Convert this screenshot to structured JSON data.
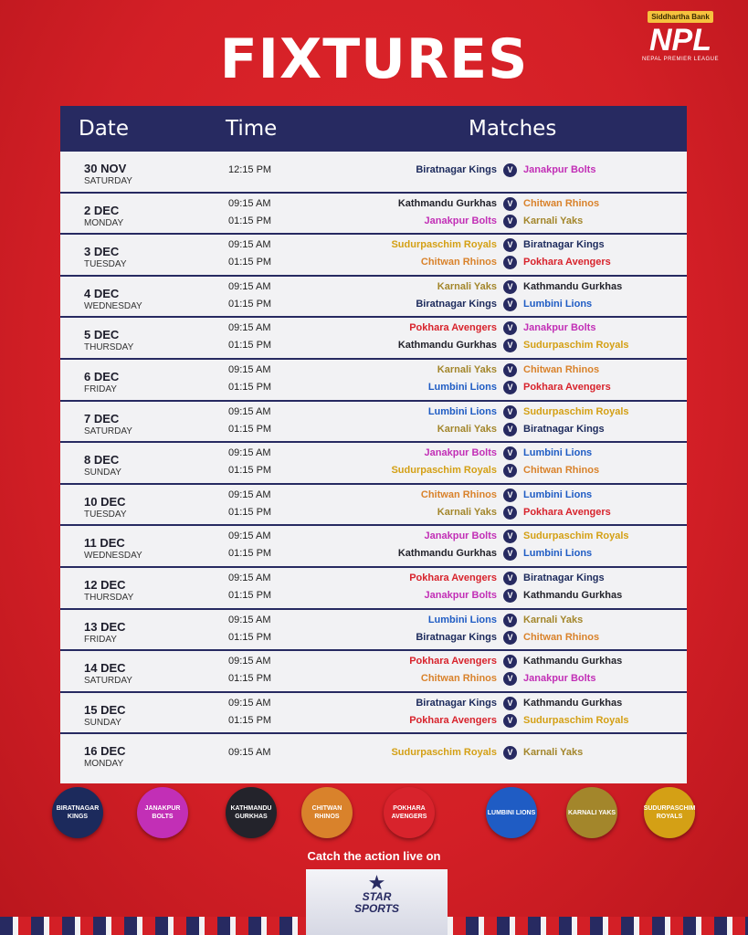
{
  "header": {
    "title": "FIXTURES",
    "sponsor": "Siddhartha Bank",
    "logo": "NPL",
    "league": "NEPAL PREMIER LEAGUE"
  },
  "teams": [
    {
      "name": "Biratnagar Kings",
      "color": "#1c2a5c"
    },
    {
      "name": "Janakpur Bolts",
      "color": "#c22fb6"
    },
    {
      "name": "Kathmandu Gurkhas",
      "color": "#23232b"
    },
    {
      "name": "Chitwan Rhinos",
      "color": "#d9822b"
    },
    {
      "name": "Pokhara Avengers",
      "color": "#d8232c"
    },
    {
      "name": "Lumbini Lions",
      "color": "#1f5cc4"
    },
    {
      "name": "Karnali Yaks",
      "color": "#a3862b"
    },
    {
      "name": "Sudurpaschim Royals",
      "color": "#d4a015"
    }
  ],
  "table": {
    "columns": [
      "Date",
      "Time",
      "Matches"
    ],
    "vs_label": "V",
    "days": [
      {
        "date": "30 NOV",
        "weekday": "SATURDAY",
        "matches": [
          {
            "time": "12:15 PM",
            "home": "Biratnagar Kings",
            "away": "Janakpur Bolts"
          }
        ]
      },
      {
        "date": "2 DEC",
        "weekday": "MONDAY",
        "matches": [
          {
            "time": "09:15 AM",
            "home": "Kathmandu Gurkhas",
            "away": "Chitwan Rhinos"
          },
          {
            "time": "01:15 PM",
            "home": "Janakpur Bolts",
            "away": "Karnali Yaks"
          }
        ]
      },
      {
        "date": "3 DEC",
        "weekday": "TUESDAY",
        "matches": [
          {
            "time": "09:15 AM",
            "home": "Sudurpaschim Royals",
            "away": "Biratnagar Kings"
          },
          {
            "time": "01:15 PM",
            "home": "Chitwan Rhinos",
            "away": "Pokhara Avengers"
          }
        ]
      },
      {
        "date": "4 DEC",
        "weekday": "WEDNESDAY",
        "matches": [
          {
            "time": "09:15 AM",
            "home": "Karnali Yaks",
            "away": "Kathmandu Gurkhas"
          },
          {
            "time": "01:15 PM",
            "home": "Biratnagar Kings",
            "away": "Lumbini Lions"
          }
        ]
      },
      {
        "date": "5 DEC",
        "weekday": "THURSDAY",
        "matches": [
          {
            "time": "09:15 AM",
            "home": "Pokhara Avengers",
            "away": "Janakpur Bolts"
          },
          {
            "time": "01:15 PM",
            "home": "Kathmandu Gurkhas",
            "away": "Sudurpaschim Royals"
          }
        ]
      },
      {
        "date": "6 DEC",
        "weekday": "FRIDAY",
        "matches": [
          {
            "time": "09:15 AM",
            "home": "Karnali Yaks",
            "away": "Chitwan Rhinos"
          },
          {
            "time": "01:15 PM",
            "home": "Lumbini Lions",
            "away": "Pokhara Avengers"
          }
        ]
      },
      {
        "date": "7 DEC",
        "weekday": "SATURDAY",
        "matches": [
          {
            "time": "09:15 AM",
            "home": "Lumbini Lions",
            "away": "Sudurpaschim Royals"
          },
          {
            "time": "01:15 PM",
            "home": "Karnali Yaks",
            "away": "Biratnagar Kings"
          }
        ]
      },
      {
        "date": "8 DEC",
        "weekday": "SUNDAY",
        "matches": [
          {
            "time": "09:15 AM",
            "home": "Janakpur Bolts",
            "away": "Lumbini Lions"
          },
          {
            "time": "01:15 PM",
            "home": "Sudurpaschim Royals",
            "away": "Chitwan Rhinos"
          }
        ]
      },
      {
        "date": "10 DEC",
        "weekday": "TUESDAY",
        "matches": [
          {
            "time": "09:15 AM",
            "home": "Chitwan Rhinos",
            "away": "Lumbini Lions"
          },
          {
            "time": "01:15 PM",
            "home": "Karnali Yaks",
            "away": "Pokhara Avengers"
          }
        ]
      },
      {
        "date": "11 DEC",
        "weekday": "WEDNESDAY",
        "matches": [
          {
            "time": "09:15 AM",
            "home": "Janakpur Bolts",
            "away": "Sudurpaschim Royals"
          },
          {
            "time": "01:15 PM",
            "home": "Kathmandu Gurkhas",
            "away": "Lumbini Lions"
          }
        ]
      },
      {
        "date": "12 DEC",
        "weekday": "THURSDAY",
        "matches": [
          {
            "time": "09:15 AM",
            "home": "Pokhara Avengers",
            "away": "Biratnagar Kings"
          },
          {
            "time": "01:15 PM",
            "home": "Janakpur Bolts",
            "away": "Kathmandu Gurkhas"
          }
        ]
      },
      {
        "date": "13 DEC",
        "weekday": "FRIDAY",
        "matches": [
          {
            "time": "09:15 AM",
            "home": "Lumbini Lions",
            "away": "Karnali Yaks"
          },
          {
            "time": "01:15 PM",
            "home": "Biratnagar Kings",
            "away": "Chitwan Rhinos"
          }
        ]
      },
      {
        "date": "14 DEC",
        "weekday": "SATURDAY",
        "matches": [
          {
            "time": "09:15 AM",
            "home": "Pokhara Avengers",
            "away": "Kathmandu Gurkhas"
          },
          {
            "time": "01:15 PM",
            "home": "Chitwan Rhinos",
            "away": "Janakpur Bolts"
          }
        ]
      },
      {
        "date": "15 DEC",
        "weekday": "SUNDAY",
        "matches": [
          {
            "time": "09:15 AM",
            "home": "Biratnagar Kings",
            "away": "Kathmandu Gurkhas"
          },
          {
            "time": "01:15 PM",
            "home": "Pokhara Avengers",
            "away": "Sudurpaschim Royals"
          }
        ]
      },
      {
        "date": "16 DEC",
        "weekday": "MONDAY",
        "matches": [
          {
            "time": "09:15 AM",
            "home": "Sudurpaschim Royals",
            "away": "Karnali Yaks"
          }
        ]
      }
    ]
  },
  "footer": {
    "caption": "Catch the action live on",
    "broadcaster": [
      "STAR",
      "SPORTS"
    ]
  }
}
